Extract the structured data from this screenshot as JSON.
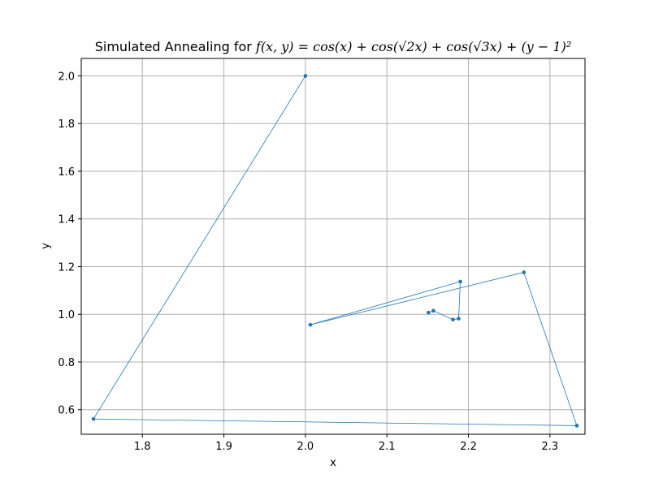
{
  "chart_data": {
    "type": "line",
    "title_prefix": "Simulated Annealing for ",
    "title_math": "f(x, y) = cos(x) + cos(√2x) + cos(√3x) + (y − 1)²",
    "xlabel": "x",
    "ylabel": "y",
    "xlim": [
      1.725,
      2.343
    ],
    "ylim": [
      0.497,
      2.073
    ],
    "xticks": [
      1.8,
      1.9,
      2.0,
      2.1,
      2.2,
      2.3
    ],
    "xtick_labels": [
      "1.8",
      "1.9",
      "2.0",
      "2.1",
      "2.2",
      "2.3"
    ],
    "yticks": [
      0.6,
      0.8,
      1.0,
      1.2,
      1.4,
      1.6,
      1.8,
      2.0
    ],
    "ytick_labels": [
      "0.6",
      "0.8",
      "1.0",
      "1.2",
      "1.4",
      "1.6",
      "1.8",
      "2.0"
    ],
    "grid": true,
    "series": [
      {
        "color": "#1f77b4",
        "x": [
          2.0,
          1.74,
          2.333,
          2.268,
          2.006,
          2.19,
          2.188,
          2.181,
          2.157,
          2.151
        ],
        "y": [
          2.0,
          0.561,
          0.533,
          1.176,
          0.956,
          1.137,
          0.982,
          0.978,
          1.015,
          1.007
        ]
      }
    ]
  }
}
